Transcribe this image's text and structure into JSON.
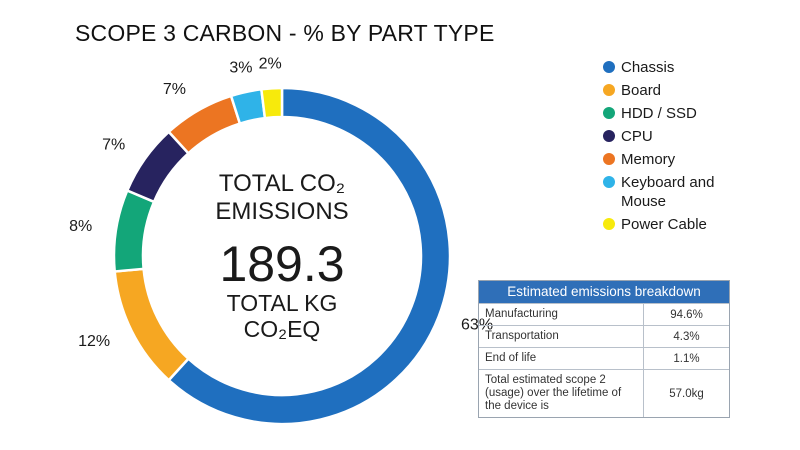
{
  "chart_data": {
    "type": "pie",
    "title": "SCOPE 3 CARBON - % BY PART TYPE",
    "categories": [
      "Chassis",
      "Board",
      "HDD / SSD",
      "CPU",
      "Memory",
      "Keyboard and Mouse",
      "Power Cable"
    ],
    "values": [
      63,
      12,
      8,
      7,
      7,
      3,
      2
    ],
    "value_labels": [
      "63%",
      "12%",
      "8%",
      "7%",
      "7%",
      "3%",
      "2%"
    ],
    "colors": [
      "#1f6fbf",
      "#f6a722",
      "#13a679",
      "#27235f",
      "#ec7522",
      "#2fb3e8",
      "#f7ea0c"
    ],
    "donut": true,
    "center_label": "TOTAL CO₂ EMISSIONS",
    "total": 189.3,
    "total_label": "TOTAL KG CO₂EQ",
    "legend": "right"
  },
  "table": {
    "title": "Estimated emissions breakdown",
    "rows": [
      [
        "Manufacturing",
        "94.6%"
      ],
      [
        "Transportation",
        "4.3%"
      ],
      [
        "End of life",
        "1.1%"
      ],
      [
        "Total estimated scope 2 (usage) over the lifetime of the device is",
        "57.0kg"
      ]
    ]
  }
}
